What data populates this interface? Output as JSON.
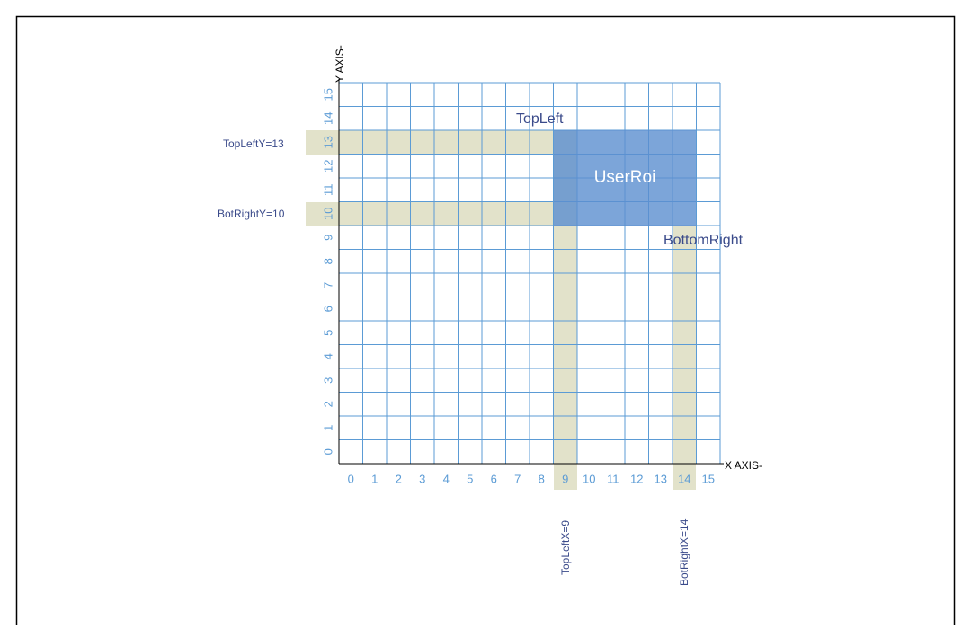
{
  "x_axis": {
    "label": "X AXIS-",
    "ticks": [
      0,
      1,
      2,
      3,
      4,
      5,
      6,
      7,
      8,
      9,
      10,
      11,
      12,
      13,
      14,
      15
    ]
  },
  "y_axis": {
    "label": "Y AXIS-",
    "ticks": [
      0,
      1,
      2,
      3,
      4,
      5,
      6,
      7,
      8,
      9,
      10,
      11,
      12,
      13,
      14,
      15
    ]
  },
  "roi": {
    "label": "UserRoi",
    "top_left": "TopLeft",
    "bottom_right": "BottomRight"
  },
  "markers": {
    "top_left_y": "TopLeftY=13",
    "bot_right_y": "BotRightY=10",
    "top_left_x": "TopLeftX=9",
    "bot_right_x": "BotRightX=14"
  }
}
